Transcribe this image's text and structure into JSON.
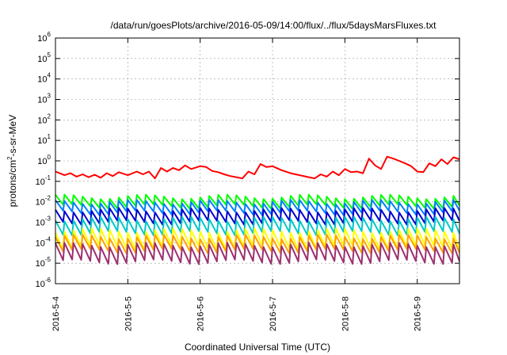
{
  "chart_data": {
    "type": "line",
    "title": "/data/run/goesPlots/archive/2016-05-09/14:00/flux/../flux/5daysMarsFluxes.txt",
    "xlabel": "Coordinated Universal Time (UTC)",
    "ylabel": {
      "prefix": "protons/cm",
      "superscript": "2",
      "suffix": "-s-sr-MeV"
    },
    "yscale": "log",
    "ylim": [
      1e-06,
      1000000.0
    ],
    "xlim": [
      "2016-05-04T00:00",
      "2016-05-09T14:00"
    ],
    "grid": true,
    "y_ticks": [
      {
        "base": "10",
        "exp": "-6",
        "value": 1e-06
      },
      {
        "base": "10",
        "exp": "-5",
        "value": 1e-05
      },
      {
        "base": "10",
        "exp": "-4",
        "value": 0.0001
      },
      {
        "base": "10",
        "exp": "-3",
        "value": 0.001
      },
      {
        "base": "10",
        "exp": "-2",
        "value": 0.01
      },
      {
        "base": "10",
        "exp": "-1",
        "value": 0.1
      },
      {
        "base": "10",
        "exp": "0",
        "value": 1
      },
      {
        "base": "10",
        "exp": "1",
        "value": 10
      },
      {
        "base": "10",
        "exp": "2",
        "value": 100
      },
      {
        "base": "10",
        "exp": "3",
        "value": 1000
      },
      {
        "base": "10",
        "exp": "4",
        "value": 10000
      },
      {
        "base": "10",
        "exp": "5",
        "value": 100000
      },
      {
        "base": "10",
        "exp": "6",
        "value": 1000000
      }
    ],
    "x_ticks": [
      {
        "label": "2016-5-4",
        "value": "2016-05-04T00:00"
      },
      {
        "label": "2016-5-5",
        "value": "2016-05-05T00:00"
      },
      {
        "label": "2016-5-6",
        "value": "2016-05-06T00:00"
      },
      {
        "label": "2016-5-7",
        "value": "2016-05-07T00:00"
      },
      {
        "label": "2016-5-8",
        "value": "2016-05-08T00:00"
      },
      {
        "label": "2016-5-9",
        "value": "2016-05-09T00:00"
      }
    ],
    "series": [
      {
        "color": "#ff0000",
        "x": [
          "2016-05-04T00:00",
          "2016-05-04T03:00",
          "2016-05-04T05:00",
          "2016-05-04T07:00",
          "2016-05-04T09:00",
          "2016-05-04T11:00",
          "2016-05-04T13:00",
          "2016-05-04T15:00",
          "2016-05-04T17:00",
          "2016-05-04T19:00",
          "2016-05-04T21:00",
          "2016-05-05T00:00",
          "2016-05-05T03:00",
          "2016-05-05T05:00",
          "2016-05-05T07:00",
          "2016-05-05T09:00",
          "2016-05-05T11:00",
          "2016-05-05T13:00",
          "2016-05-05T15:00",
          "2016-05-05T17:00",
          "2016-05-05T19:00",
          "2016-05-05T21:00",
          "2016-05-06T00:00",
          "2016-05-06T02:00",
          "2016-05-06T04:00",
          "2016-05-06T06:00",
          "2016-05-06T08:00",
          "2016-05-06T10:00",
          "2016-05-06T12:00",
          "2016-05-06T14:00",
          "2016-05-06T16:00",
          "2016-05-06T18:00",
          "2016-05-06T20:00",
          "2016-05-06T22:00",
          "2016-05-07T00:00",
          "2016-05-07T03:00",
          "2016-05-07T06:00",
          "2016-05-07T09:00",
          "2016-05-07T12:00",
          "2016-05-07T14:00",
          "2016-05-07T16:00",
          "2016-05-07T18:00",
          "2016-05-07T20:00",
          "2016-05-07T22:00",
          "2016-05-08T00:00",
          "2016-05-08T02:00",
          "2016-05-08T04:00",
          "2016-05-08T06:00",
          "2016-05-08T08:00",
          "2016-05-08T10:00",
          "2016-05-08T12:00",
          "2016-05-08T14:00",
          "2016-05-08T16:00",
          "2016-05-08T18:00",
          "2016-05-08T20:00",
          "2016-05-08T22:00",
          "2016-05-09T00:00",
          "2016-05-09T02:00",
          "2016-05-09T04:00",
          "2016-05-09T06:00",
          "2016-05-09T08:00",
          "2016-05-09T10:00",
          "2016-05-09T12:00",
          "2016-05-09T14:00"
        ],
        "values": [
          0.3,
          0.2,
          0.25,
          0.17,
          0.22,
          0.16,
          0.21,
          0.15,
          0.25,
          0.18,
          0.28,
          0.2,
          0.3,
          0.22,
          0.3,
          0.14,
          0.45,
          0.3,
          0.45,
          0.35,
          0.6,
          0.4,
          0.55,
          0.5,
          0.32,
          0.28,
          0.22,
          0.18,
          0.16,
          0.14,
          0.3,
          0.22,
          0.7,
          0.5,
          0.55,
          0.35,
          0.25,
          0.2,
          0.16,
          0.14,
          0.22,
          0.17,
          0.3,
          0.2,
          0.4,
          0.28,
          0.3,
          0.25,
          1.3,
          0.6,
          0.4,
          1.6,
          1.3,
          1.0,
          0.75,
          0.55,
          0.3,
          0.28,
          0.75,
          0.55,
          1.2,
          0.7,
          1.5,
          1.2
        ]
      },
      {
        "color": "#00ff00",
        "base": 0.018,
        "low": 0.006
      },
      {
        "color": "#0080ff",
        "base": 0.01,
        "low": 0.003
      },
      {
        "color": "#0000cc",
        "base": 0.004,
        "low": 0.001
      },
      {
        "color": "#00c8c8",
        "base": 0.0015,
        "low": 0.0003
      },
      {
        "color": "#ffff00",
        "base": 0.0004,
        "low": 6e-05
      },
      {
        "color": "#ffa000",
        "base": 0.0002,
        "low": 4e-05
      },
      {
        "color": "#9b3070",
        "base": 8e-05,
        "low": 1.2e-05
      }
    ]
  }
}
